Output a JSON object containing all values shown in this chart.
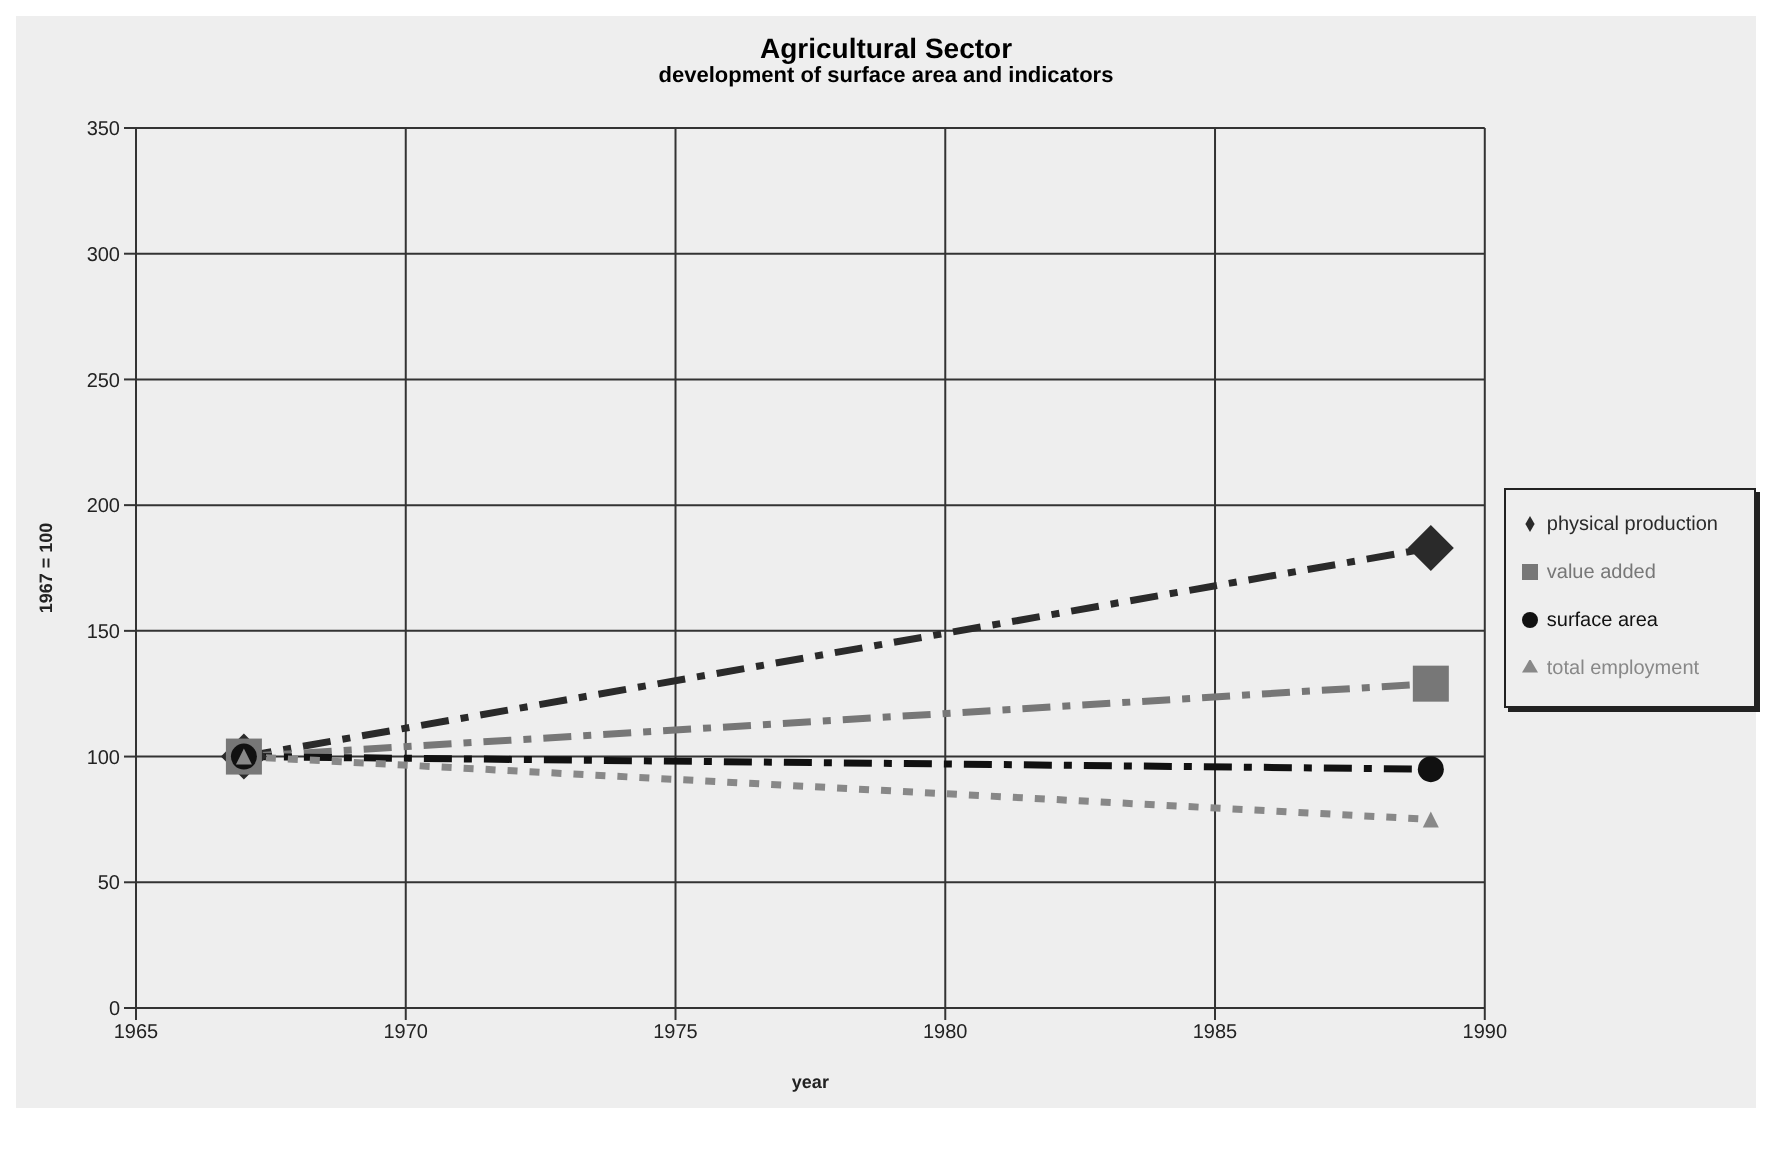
{
  "chart_data": {
    "type": "line",
    "title": "Agricultural Sector",
    "subtitle": "development of surface area and indicators",
    "xlabel": "year",
    "ylabel": "1967 = 100",
    "x": [
      1967,
      1989
    ],
    "series": [
      {
        "name": "physical production",
        "color": "#2a2a2a",
        "values": [
          100,
          183
        ],
        "marker": "diamond",
        "line_style": "dashed"
      },
      {
        "name": "value added",
        "color": "#777777",
        "values": [
          100,
          129
        ],
        "marker": "square",
        "line_style": "dashed"
      },
      {
        "name": "surface area",
        "color": "#111111",
        "values": [
          100,
          95
        ],
        "marker": "circle",
        "line_style": "dashed"
      },
      {
        "name": "total employment",
        "color": "#888888",
        "values": [
          100,
          75
        ],
        "marker": "triangle",
        "line_style": "dotted"
      }
    ],
    "xlim": [
      1965,
      1990
    ],
    "xticks": [
      1965,
      1970,
      1975,
      1980,
      1985,
      1990
    ],
    "ylim": [
      0,
      350
    ],
    "yticks": [
      0,
      50,
      100,
      150,
      200,
      250,
      300,
      350
    ],
    "grid": true,
    "legend": "right"
  }
}
